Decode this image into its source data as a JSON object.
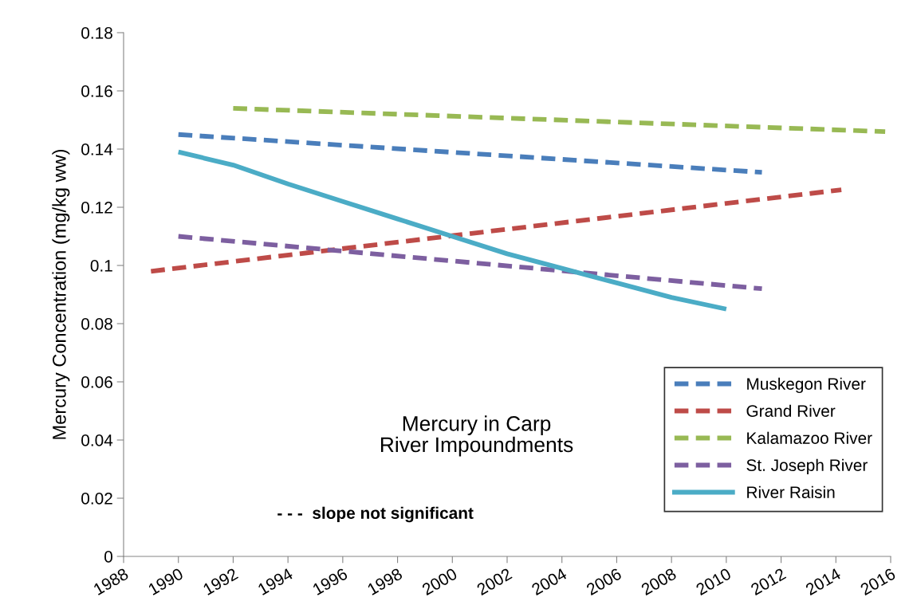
{
  "chart_data": {
    "type": "line",
    "ylabel": "Mercury Concentration (mg/kg ww)",
    "annotations": [
      "Mercury in Carp\nRiver Impoundments",
      "- - -  slope not significant"
    ],
    "xlim": [
      1988,
      2016
    ],
    "xticks": [
      1988,
      1990,
      1992,
      1994,
      1996,
      1998,
      2000,
      2002,
      2004,
      2006,
      2008,
      2010,
      2012,
      2014,
      2016
    ],
    "ylim": [
      0,
      0.18
    ],
    "yticks": [
      0,
      0.02,
      0.04,
      0.06,
      0.08,
      0.1,
      0.12,
      0.14,
      0.16,
      0.18
    ],
    "grid": false,
    "legend": "bottom right",
    "marker": "none",
    "series": [
      {
        "name": "Muskegon River",
        "color": "#4a7ebb",
        "line_style": "dashed",
        "x": [
          1990,
          2011.3
        ],
        "values": [
          0.145,
          0.132
        ]
      },
      {
        "name": "Grand River",
        "color": "#be4b48",
        "line_style": "dashed",
        "x": [
          1989,
          2014.2
        ],
        "values": [
          0.098,
          0.126
        ]
      },
      {
        "name": "Kalamazoo River",
        "color": "#98b954",
        "line_style": "dashed",
        "x": [
          1992,
          2015.8
        ],
        "values": [
          0.154,
          0.146
        ]
      },
      {
        "name": "St. Joseph River",
        "color": "#7d5fa0",
        "line_style": "dashed",
        "x": [
          1990,
          2011.3
        ],
        "values": [
          0.11,
          0.092
        ]
      },
      {
        "name": "River Raisin",
        "color": "#4bacc6",
        "line_style": "solid",
        "x": [
          1990,
          1992,
          1994,
          1996,
          1998,
          2000,
          2002,
          2004,
          2006,
          2008,
          2010
        ],
        "values": [
          0.139,
          0.1345,
          0.128,
          0.122,
          0.116,
          0.11,
          0.104,
          0.099,
          0.094,
          0.089,
          0.085
        ]
      }
    ]
  }
}
